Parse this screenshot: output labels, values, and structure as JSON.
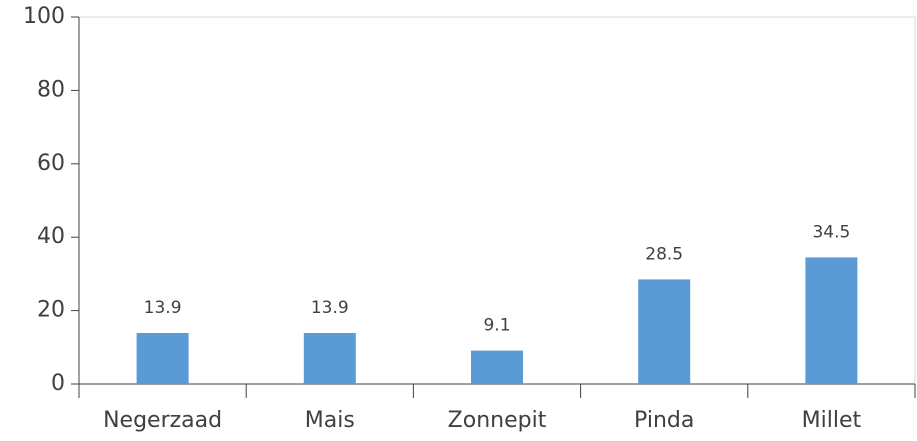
{
  "chart_data": {
    "type": "bar",
    "categories": [
      "Negerzaad",
      "Mais",
      "Zonnepit",
      "Pinda",
      "Millet"
    ],
    "values": [
      13.9,
      13.9,
      9.1,
      28.5,
      34.5
    ],
    "color": "#5b9bd5",
    "ylim": [
      0,
      100
    ],
    "yticks": [
      0,
      20,
      40,
      60,
      80,
      100
    ],
    "grid": false
  }
}
